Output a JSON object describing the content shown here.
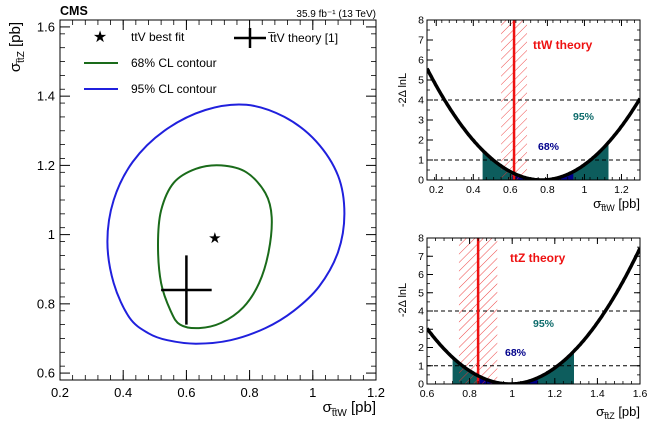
{
  "chart_data": [
    {
      "type": "contour",
      "experiment_label": "CMS",
      "lumi_label": "35.9 fb⁻¹ (13 TeV)",
      "xlabel_main": "σ",
      "xlabel_sub": "t̅tW",
      "xlabel_unit": "[pb]",
      "ylabel_main": "σ",
      "ylabel_sub": "t̅tZ",
      "ylabel_unit": "[pb]",
      "xlim": [
        0.2,
        1.2
      ],
      "ylim": [
        0.58,
        1.62
      ],
      "x_ticks": [
        "0.2",
        "0.4",
        "0.6",
        "0.8",
        "1",
        "1.2"
      ],
      "y_ticks": [
        "0.6",
        "0.8",
        "1",
        "1.2",
        "1.4",
        "1.6"
      ],
      "legend": [
        {
          "label": "ttV best fit",
          "marker": "star",
          "color": "#000000"
        },
        {
          "label": "t̅tV theory [1]",
          "marker": "cross",
          "color": "#000000"
        },
        {
          "label": "68% CL contour",
          "marker": "line",
          "color": "#1a6b1a"
        },
        {
          "label": "95% CL contour",
          "marker": "line",
          "color": "#2020dd"
        }
      ],
      "best_fit": {
        "x": 0.69,
        "y": 0.99
      },
      "theory": {
        "x": 0.6,
        "y": 0.84,
        "x_err": [
          0.52,
          0.68
        ],
        "y_err": [
          0.74,
          0.94
        ]
      },
      "contour68": [
        [
          0.58,
          0.74
        ],
        [
          0.64,
          0.73
        ],
        [
          0.71,
          0.745
        ],
        [
          0.78,
          0.79
        ],
        [
          0.83,
          0.86
        ],
        [
          0.86,
          0.95
        ],
        [
          0.87,
          1.05
        ],
        [
          0.85,
          1.12
        ],
        [
          0.79,
          1.18
        ],
        [
          0.71,
          1.2
        ],
        [
          0.63,
          1.19
        ],
        [
          0.56,
          1.15
        ],
        [
          0.52,
          1.07
        ],
        [
          0.51,
          0.97
        ],
        [
          0.52,
          0.86
        ],
        [
          0.55,
          0.78
        ],
        [
          0.58,
          0.74
        ]
      ],
      "contour95": [
        [
          0.54,
          0.695
        ],
        [
          0.63,
          0.685
        ],
        [
          0.74,
          0.695
        ],
        [
          0.85,
          0.73
        ],
        [
          0.94,
          0.78
        ],
        [
          1.02,
          0.85
        ],
        [
          1.08,
          0.95
        ],
        [
          1.1,
          1.06
        ],
        [
          1.08,
          1.17
        ],
        [
          1.01,
          1.27
        ],
        [
          0.91,
          1.34
        ],
        [
          0.79,
          1.375
        ],
        [
          0.66,
          1.36
        ],
        [
          0.53,
          1.3
        ],
        [
          0.43,
          1.21
        ],
        [
          0.37,
          1.1
        ],
        [
          0.35,
          0.98
        ],
        [
          0.37,
          0.86
        ],
        [
          0.42,
          0.76
        ],
        [
          0.48,
          0.715
        ],
        [
          0.54,
          0.695
        ]
      ],
      "colors": {
        "c68": "#1a6b1a",
        "c95": "#2020dd"
      }
    },
    {
      "type": "likelihood_scan",
      "ylabel": "-2Δ lnL",
      "xlabel_main": "σ",
      "xlabel_sub": "t̅tW",
      "xlabel_unit": "[pb]",
      "xlim": [
        0.15,
        1.3
      ],
      "ylim": [
        0,
        8
      ],
      "x_ticks": [
        "0.2",
        "0.4",
        "0.6",
        "0.8",
        "1",
        "1.2"
      ],
      "y_ticks": [
        "0",
        "1",
        "2",
        "3",
        "4",
        "5",
        "6",
        "7",
        "8"
      ],
      "min": 0.77,
      "k": 14.5,
      "cl95_interval": [
        0.45,
        1.13
      ],
      "cl68_interval": [
        0.61,
        0.94
      ],
      "cl_levels": [
        1,
        4
      ],
      "label68": "68%",
      "label95": "95%",
      "theory_label": "ttW theory",
      "theory_value": 0.62,
      "theory_band": [
        0.55,
        0.69
      ],
      "colors": {
        "fill95": "#0d5d5d",
        "fill68": "#00008b",
        "theory": "#ee1111",
        "label95": "#0d6b6b",
        "label68": "#00008b"
      }
    },
    {
      "type": "likelihood_scan",
      "ylabel": "-2Δ lnL",
      "xlabel_main": "σ",
      "xlabel_sub": "t̅tZ",
      "xlabel_unit": "[pb]",
      "xlim": [
        0.6,
        1.6
      ],
      "ylim": [
        0,
        8
      ],
      "x_ticks": [
        "0.6",
        "0.8",
        "1",
        "1.2",
        "1.4",
        "1.6"
      ],
      "y_ticks": [
        "0",
        "1",
        "2",
        "3",
        "4",
        "5",
        "6",
        "7",
        "8"
      ],
      "min": 0.99,
      "k": 20,
      "cl95_interval": [
        0.72,
        1.29
      ],
      "cl68_interval": [
        0.84,
        1.12
      ],
      "cl_levels": [
        1,
        4
      ],
      "label68": "68%",
      "label95": "95%",
      "theory_label": "ttZ theory",
      "theory_value": 0.84,
      "theory_band": [
        0.75,
        0.93
      ],
      "colors": {
        "fill95": "#0d5d5d",
        "fill68": "#00008b",
        "theory": "#ee1111",
        "label95": "#0d6b6b",
        "label68": "#00008b"
      }
    }
  ]
}
